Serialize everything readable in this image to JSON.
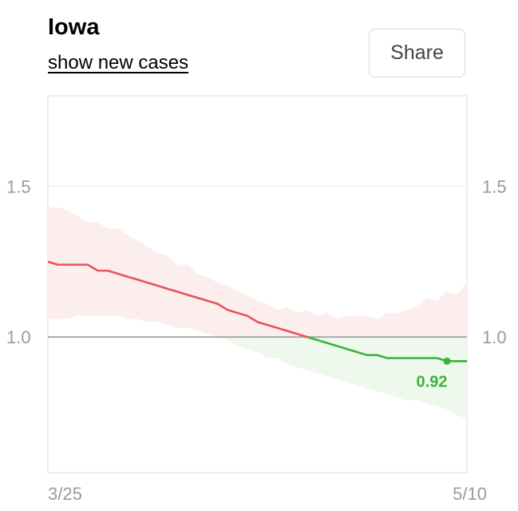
{
  "header": {
    "title": "Iowa",
    "toggle_label": "show new cases",
    "share_label": "Share"
  },
  "colors": {
    "above_line": "#e4555b",
    "above_band": "#fdeeee",
    "below_line": "#3cb33c",
    "below_band": "#eef8ec",
    "reference_line": "#aaaaaa",
    "grid": "#eeeeee",
    "frame": "#e3e3e3",
    "axis_text": "#9a9a9a"
  },
  "chart_data": {
    "type": "line",
    "title": "Iowa",
    "xlabel": "",
    "ylabel": "",
    "x_tick_labels": [
      "3/25",
      "5/10"
    ],
    "y_ticks": [
      1.0,
      1.5
    ],
    "y_tick_labels": [
      "1.0",
      "1.5"
    ],
    "ylim": [
      0.55,
      1.8
    ],
    "grid": true,
    "reference_value": 1.0,
    "latest_value_label": "0.92",
    "series": [
      {
        "x": [
          0,
          1,
          2,
          3,
          4,
          5,
          6,
          7,
          8,
          9,
          10,
          11,
          12,
          13,
          14,
          15,
          16,
          17,
          18,
          19,
          20,
          21,
          22,
          23,
          24,
          25,
          26,
          27,
          28,
          29,
          30,
          31,
          32,
          33,
          34,
          35,
          36,
          37,
          38,
          39,
          40,
          41,
          42
        ],
        "values": [
          1.25,
          1.24,
          1.24,
          1.24,
          1.24,
          1.22,
          1.22,
          1.21,
          1.2,
          1.19,
          1.18,
          1.17,
          1.16,
          1.15,
          1.14,
          1.13,
          1.12,
          1.11,
          1.09,
          1.08,
          1.07,
          1.05,
          1.04,
          1.03,
          1.02,
          1.01,
          1.0,
          0.99,
          0.98,
          0.97,
          0.96,
          0.95,
          0.94,
          0.94,
          0.93,
          0.93,
          0.93,
          0.93,
          0.93,
          0.93,
          0.92,
          0.92,
          0.92
        ],
        "lower": [
          1.06,
          1.06,
          1.06,
          1.07,
          1.07,
          1.07,
          1.07,
          1.07,
          1.06,
          1.06,
          1.05,
          1.05,
          1.04,
          1.03,
          1.03,
          1.02,
          1.01,
          1.0,
          0.99,
          0.97,
          0.96,
          0.95,
          0.93,
          0.93,
          0.91,
          0.9,
          0.89,
          0.88,
          0.87,
          0.86,
          0.85,
          0.84,
          0.83,
          0.82,
          0.81,
          0.8,
          0.79,
          0.79,
          0.78,
          0.77,
          0.76,
          0.74,
          0.73
        ],
        "upper": [
          1.43,
          1.43,
          1.42,
          1.4,
          1.38,
          1.38,
          1.36,
          1.36,
          1.34,
          1.32,
          1.3,
          1.28,
          1.27,
          1.24,
          1.24,
          1.21,
          1.2,
          1.18,
          1.17,
          1.15,
          1.14,
          1.12,
          1.11,
          1.09,
          1.1,
          1.08,
          1.09,
          1.07,
          1.08,
          1.06,
          1.07,
          1.07,
          1.07,
          1.06,
          1.08,
          1.08,
          1.09,
          1.1,
          1.13,
          1.12,
          1.15,
          1.14,
          1.18
        ]
      }
    ],
    "projected": {
      "x": [
        40,
        42
      ],
      "values": [
        0.92,
        0.92
      ]
    }
  }
}
